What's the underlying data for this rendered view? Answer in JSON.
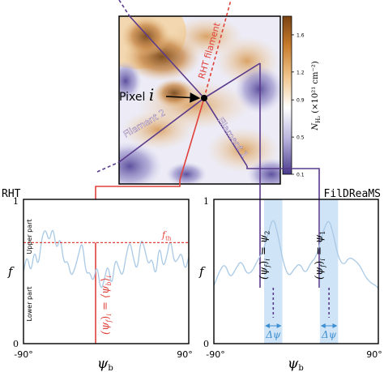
{
  "colorbar": {
    "label": "N_H₂ (×10²¹ cm⁻²)",
    "label_main": "N",
    "label_sub": "H₂",
    "label_rest": " (×10²¹ cm⁻²)",
    "ticks": [
      "0.1",
      "0.5",
      "0.9",
      "1.2",
      "1.6"
    ],
    "tick_values": [
      0.1,
      0.5,
      0.9,
      1.2,
      1.6
    ],
    "range": [
      0.1,
      1.8
    ],
    "colors": [
      "#4a3a8c",
      "#b6b2dc",
      "#ffffff",
      "#f0c48a",
      "#c67a2a",
      "#7a4212"
    ]
  },
  "map": {
    "pixel_label": "Pixel ",
    "pixel_symbol": "i",
    "rht_filament_label": "RHT filament",
    "filament1_label": "Filament 1",
    "filament2_label": "Filament 2"
  },
  "colors": {
    "rht": "#e0413a",
    "filament": "#5a3a8c",
    "curve": "#a9c9e6",
    "band": "#cfe4f6",
    "threshold": "#e0413a",
    "delta": "#3d8fd1"
  },
  "panels": {
    "rht": {
      "title": "RHT",
      "ylabel": "f",
      "xlabel": "ψ_b",
      "xlabel_main": "ψ",
      "xlabel_sub": "b",
      "xtick_left": "-90°",
      "xtick_right": "90°",
      "ytick_top": "1",
      "ytick_bottom": "0",
      "upper_part": "Upper part",
      "lower_part": "Lower part",
      "threshold_label": "f_th",
      "threshold_main": "f",
      "threshold_sub": "th",
      "threshold_value": 0.7,
      "annotation": "(ψ_f)_i = ⟨ψ_b⟩_i",
      "annotation_parts": [
        "(ψ",
        "f",
        ")",
        "i",
        " = ⟨ψ",
        "b",
        "⟩",
        "i"
      ],
      "marker_angle": -25
    },
    "fildreams": {
      "title": "FilDReaMS",
      "ylabel": "f",
      "xlabel": "ψ_b",
      "xlabel_main": "ψ",
      "xlabel_sub": "b",
      "xtick_left": "-90°",
      "xtick_right": "90°",
      "ytick_top": "1",
      "ytick_bottom": "0",
      "annotation_left": "(ψ_f)_i = ψ_2",
      "annotation_left_parts": [
        "(ψ",
        "f",
        ")",
        "i",
        " = ψ",
        "2"
      ],
      "annotation_right": "(ψ_f)_i = ψ_1",
      "annotation_right_parts": [
        "(ψ",
        "f",
        ")",
        "i",
        " = ψ",
        "1"
      ],
      "delta_label": "Δψ",
      "peak1_angle": 36,
      "peak2_angle": -25
    }
  },
  "chart_data": [
    {
      "type": "line",
      "title": "RHT",
      "xlabel": "ψ_b",
      "ylabel": "f",
      "xlim": [
        -90,
        90
      ],
      "ylim": [
        0,
        1
      ],
      "threshold": 0.7,
      "x": [
        -90,
        -86,
        -82,
        -78,
        -74,
        -70,
        -66,
        -62,
        -58,
        -54,
        -50,
        -46,
        -42,
        -38,
        -34,
        -30,
        -26,
        -22,
        -18,
        -14,
        -10,
        -6,
        -2,
        2,
        6,
        10,
        14,
        18,
        22,
        26,
        30,
        34,
        38,
        42,
        46,
        50,
        54,
        58,
        62,
        66,
        70,
        74,
        78,
        82,
        86,
        90
      ],
      "values": [
        0.5,
        0.62,
        0.48,
        0.66,
        0.52,
        0.74,
        0.8,
        0.7,
        0.82,
        0.64,
        0.75,
        0.55,
        0.58,
        0.46,
        0.52,
        0.62,
        0.72,
        0.48,
        0.5,
        0.42,
        0.56,
        0.36,
        0.44,
        0.56,
        0.38,
        0.6,
        0.52,
        0.46,
        0.62,
        0.72,
        0.58,
        0.5,
        0.74,
        0.66,
        0.54,
        0.6,
        0.45,
        0.7,
        0.52,
        0.6,
        0.74,
        0.56,
        0.58,
        0.64,
        0.5,
        0.6
      ]
    },
    {
      "type": "line",
      "title": "FilDReaMS",
      "xlabel": "ψ_b",
      "ylabel": "f",
      "xlim": [
        -90,
        90
      ],
      "ylim": [
        0,
        1
      ],
      "x": [
        -90,
        -84,
        -78,
        -72,
        -66,
        -60,
        -54,
        -48,
        -42,
        -36,
        -30,
        -25,
        -20,
        -14,
        -8,
        -2,
        4,
        10,
        16,
        22,
        28,
        32,
        36,
        40,
        46,
        52,
        58,
        64,
        70,
        76,
        82,
        88,
        90
      ],
      "values": [
        0.4,
        0.5,
        0.56,
        0.45,
        0.52,
        0.58,
        0.48,
        0.5,
        0.58,
        0.64,
        0.78,
        0.88,
        0.76,
        0.56,
        0.46,
        0.52,
        0.56,
        0.48,
        0.56,
        0.6,
        0.74,
        0.82,
        0.86,
        0.78,
        0.6,
        0.54,
        0.6,
        0.58,
        0.54,
        0.46,
        0.42,
        0.4,
        0.38
      ],
      "peaks": [
        {
          "name": "ψ_2",
          "x": -25
        },
        {
          "name": "ψ_1",
          "x": 36
        }
      ]
    }
  ]
}
